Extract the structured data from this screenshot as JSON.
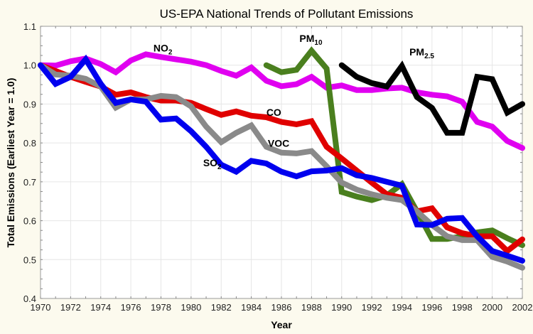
{
  "chart_data": {
    "type": "line",
    "title": "US-EPA National Trends of Pollutant Emissions",
    "xlabel": "Year",
    "ylabel": "Total Emissions (Earliest Year = 1.0)",
    "xlim": [
      1970,
      2002
    ],
    "ylim": [
      0.4,
      1.1
    ],
    "grid": true,
    "legend": "inline labels",
    "x_ticks": [
      "1970",
      "1972",
      "1974",
      "1976",
      "1978",
      "1980",
      "1982",
      "1984",
      "1986",
      "1988",
      "1990",
      "1992",
      "1994",
      "1996",
      "1998",
      "2000",
      "2002"
    ],
    "y_ticks": [
      "0.4",
      "0.5",
      "0.6",
      "0.7",
      "0.8",
      "0.9",
      "1.0",
      "1.1"
    ],
    "series": [
      {
        "name": "NO2",
        "label_main": "NO",
        "label_sub": "2",
        "color": "#e000f0",
        "label_at": [
          1977.5,
          1.035
        ],
        "x": [
          1970,
          1971,
          1972,
          1973,
          1974,
          1975,
          1976,
          1977,
          1978,
          1979,
          1980,
          1981,
          1982,
          1983,
          1984,
          1985,
          1986,
          1987,
          1988,
          1989,
          1990,
          1991,
          1992,
          1993,
          1994,
          1995,
          1996,
          1997,
          1998,
          1999,
          2000,
          2001,
          2002
        ],
        "values": [
          1.0,
          0.999,
          1.01,
          1.017,
          1.003,
          0.982,
          1.012,
          1.028,
          1.021,
          1.015,
          1.009,
          1.0,
          0.985,
          0.973,
          0.994,
          0.96,
          0.946,
          0.951,
          0.97,
          0.942,
          0.948,
          0.936,
          0.936,
          0.94,
          0.942,
          0.93,
          0.924,
          0.92,
          0.906,
          0.854,
          0.842,
          0.805,
          0.787
        ]
      },
      {
        "name": "PM10",
        "label_main": "PM",
        "label_sub": "10",
        "color": "#4a7f1e",
        "label_at": [
          1987.2,
          1.06
        ],
        "x": [
          1985,
          1986,
          1987,
          1988,
          1989,
          1990,
          1991,
          1992,
          1993,
          1994,
          1995,
          1996,
          1997,
          1998,
          1999,
          2000,
          2001,
          2002
        ],
        "values": [
          1.0,
          0.982,
          0.988,
          1.037,
          0.991,
          0.674,
          0.662,
          0.653,
          0.665,
          0.694,
          0.624,
          0.553,
          0.553,
          0.56,
          0.57,
          0.575,
          0.555,
          0.537
        ]
      },
      {
        "name": "PM2.5",
        "label_main": "PM",
        "label_sub": "2.5",
        "color": "#000000",
        "label_at": [
          1994.5,
          1.025
        ],
        "x": [
          1990,
          1991,
          1992,
          1993,
          1994,
          1995,
          1996,
          1997,
          1998,
          1999,
          2000,
          2001,
          2002
        ],
        "values": [
          1.0,
          0.97,
          0.954,
          0.945,
          0.998,
          0.918,
          0.89,
          0.826,
          0.826,
          0.97,
          0.964,
          0.878,
          0.9
        ]
      },
      {
        "name": "CO",
        "label_main": "CO",
        "label_sub": "",
        "color": "#e00000",
        "label_at": [
          1985.0,
          0.87
        ],
        "x": [
          1970,
          1971,
          1972,
          1973,
          1974,
          1975,
          1976,
          1977,
          1978,
          1979,
          1980,
          1981,
          1982,
          1983,
          1984,
          1985,
          1986,
          1987,
          1988,
          1989,
          1990,
          1991,
          1992,
          1993,
          1994,
          1995,
          1996,
          1997,
          1998,
          1999,
          2000,
          2001,
          2002
        ],
        "values": [
          1.0,
          0.985,
          0.97,
          0.957,
          0.945,
          0.924,
          0.93,
          0.918,
          0.909,
          0.909,
          0.903,
          0.887,
          0.872,
          0.881,
          0.87,
          0.866,
          0.854,
          0.848,
          0.856,
          0.79,
          0.76,
          0.729,
          0.698,
          0.668,
          0.659,
          0.624,
          0.632,
          0.583,
          0.568,
          0.56,
          0.56,
          0.522,
          0.552
        ]
      },
      {
        "name": "VOC",
        "label_main": "VOC",
        "label_sub": "",
        "color": "#8a8a8a",
        "label_at": [
          1985.1,
          0.79
        ],
        "x": [
          1970,
          1971,
          1972,
          1973,
          1974,
          1975,
          1976,
          1977,
          1978,
          1979,
          1980,
          1981,
          1982,
          1983,
          1984,
          1985,
          1986,
          1987,
          1988,
          1989,
          1990,
          1991,
          1992,
          1993,
          1994,
          1995,
          1996,
          1997,
          1998,
          1999,
          2000,
          2001,
          2002
        ],
        "values": [
          1.0,
          0.976,
          0.973,
          0.965,
          0.945,
          0.891,
          0.912,
          0.912,
          0.921,
          0.918,
          0.894,
          0.842,
          0.802,
          0.826,
          0.845,
          0.79,
          0.775,
          0.773,
          0.779,
          0.74,
          0.698,
          0.68,
          0.668,
          0.659,
          0.653,
          0.624,
          0.589,
          0.56,
          0.55,
          0.55,
          0.507,
          0.495,
          0.479
        ]
      },
      {
        "name": "SO2",
        "label_main": "SO",
        "label_sub": "2",
        "color": "#0000ee",
        "label_at": [
          1980.8,
          0.74
        ],
        "x": [
          1970,
          1971,
          1972,
          1973,
          1974,
          1975,
          1976,
          1977,
          1978,
          1979,
          1980,
          1981,
          1982,
          1983,
          1984,
          1985,
          1986,
          1987,
          1988,
          1989,
          1990,
          1991,
          1992,
          1993,
          1994,
          1995,
          1996,
          1997,
          1998,
          1999,
          2000,
          2001,
          2002
        ],
        "values": [
          1.0,
          0.952,
          0.97,
          1.015,
          0.952,
          0.903,
          0.912,
          0.906,
          0.86,
          0.863,
          0.83,
          0.79,
          0.744,
          0.726,
          0.754,
          0.747,
          0.726,
          0.714,
          0.727,
          0.729,
          0.735,
          0.717,
          0.71,
          0.7,
          0.69,
          0.59,
          0.589,
          0.605,
          0.607,
          0.56,
          0.522,
          0.51,
          0.497
        ]
      }
    ]
  }
}
